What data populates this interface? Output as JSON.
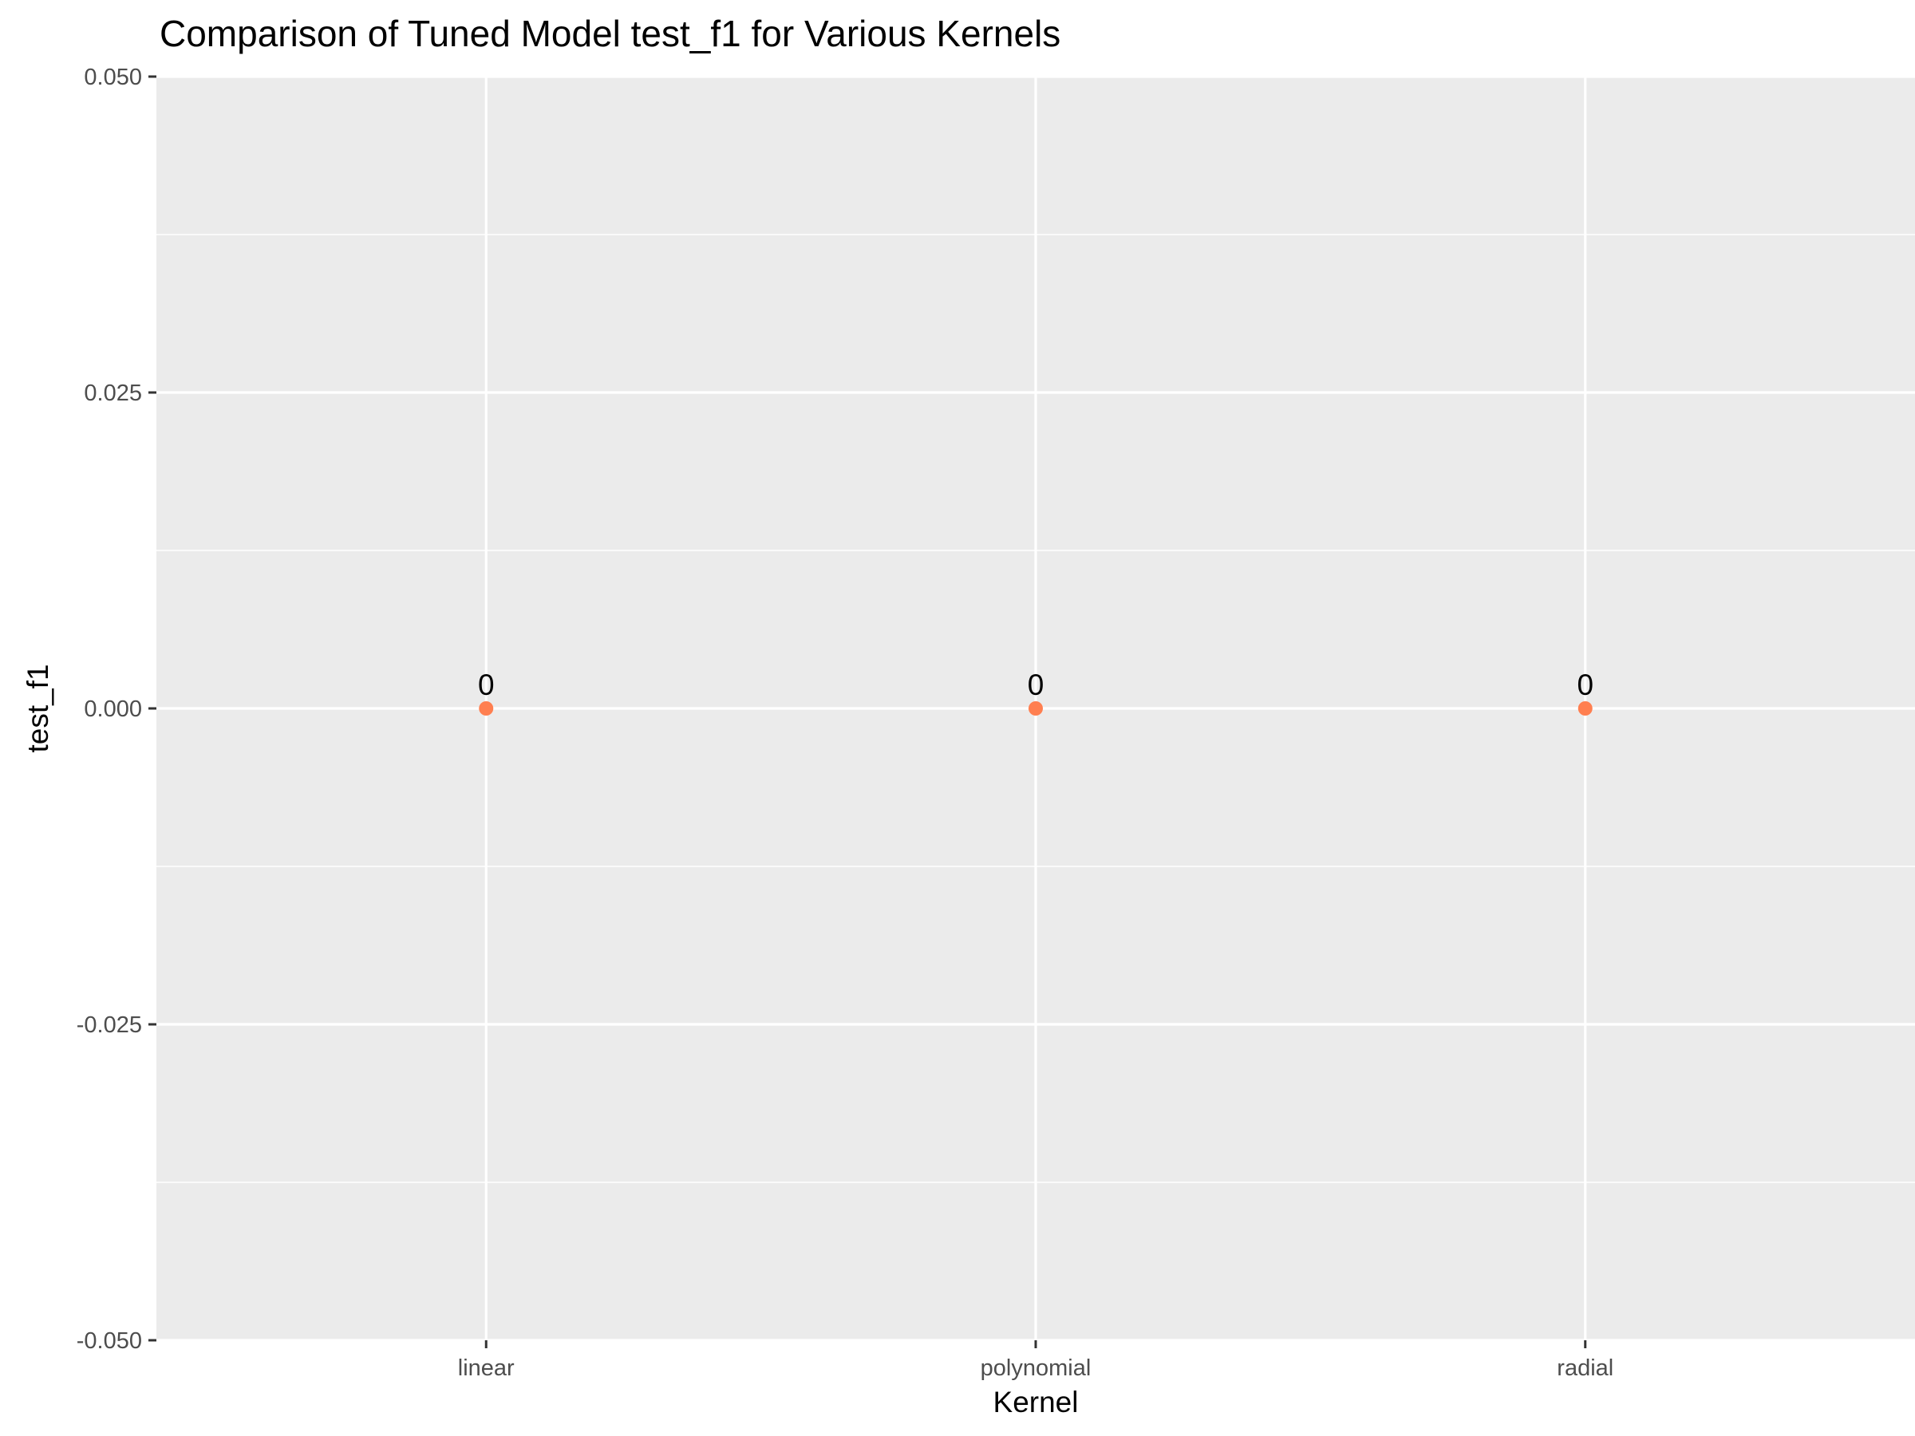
{
  "chart_data": {
    "type": "scatter",
    "title": "Comparison of Tuned Model test_f1 for Various Kernels",
    "xlabel": "Kernel",
    "ylabel": "test_f1",
    "categories": [
      "linear",
      "polynomial",
      "radial"
    ],
    "values": [
      0,
      0,
      0
    ],
    "data_labels": [
      "0",
      "0",
      "0"
    ],
    "ylim": [
      -0.05,
      0.05
    ],
    "yticks": [
      -0.05,
      -0.025,
      0,
      0.025,
      0.05
    ],
    "ytick_labels": [
      "-0.050",
      "-0.025",
      "0.000",
      "0.025",
      "0.050"
    ],
    "grid": true,
    "legend": "none",
    "colors": {
      "point": "#ff7f50",
      "panel": "#ebebeb",
      "grid": "#ffffff"
    }
  }
}
